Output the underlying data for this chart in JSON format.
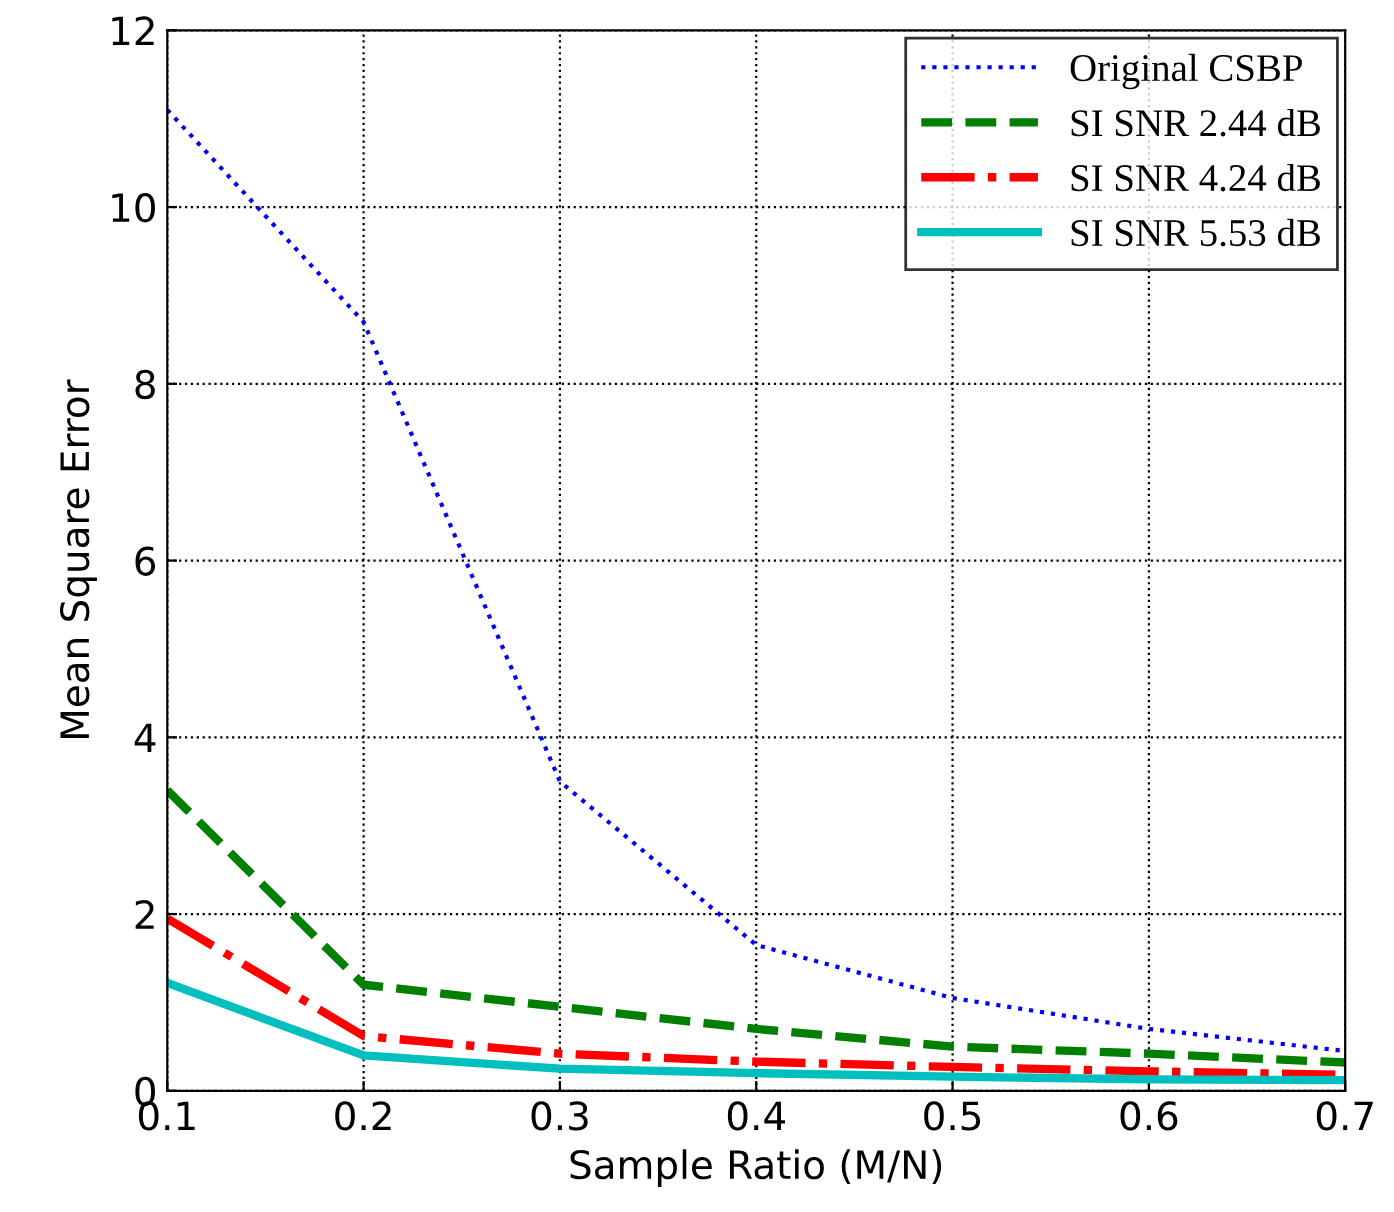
{
  "chart_data": {
    "type": "line",
    "xlabel": "Sample Ratio (M/N)",
    "ylabel": "Mean Square Error",
    "x": [
      0.1,
      0.2,
      0.3,
      0.4,
      0.5,
      0.6,
      0.7
    ],
    "series": [
      {
        "name": "Original CSBP",
        "color": "#0000ff",
        "line_style": "dotted",
        "values": [
          11.1,
          8.7,
          3.5,
          1.65,
          1.05,
          0.7,
          0.45
        ]
      },
      {
        "name": "SI SNR 2.44 dB",
        "color": "#007f00",
        "line_style": "dashed",
        "values": [
          3.4,
          1.2,
          0.95,
          0.7,
          0.5,
          0.42,
          0.32
        ]
      },
      {
        "name": "SI SNR 4.24 dB",
        "color": "#ff0000",
        "line_style": "dashdot",
        "values": [
          1.95,
          0.62,
          0.42,
          0.33,
          0.27,
          0.22,
          0.18
        ]
      },
      {
        "name": "SI SNR 5.53 dB",
        "color": "#00bfbf",
        "line_style": "solid",
        "values": [
          1.22,
          0.4,
          0.25,
          0.2,
          0.16,
          0.13,
          0.12
        ]
      }
    ],
    "xlim": [
      0.1,
      0.7
    ],
    "ylim": [
      0,
      12
    ],
    "xticks": [
      0.1,
      0.2,
      0.3,
      0.4,
      0.5,
      0.6,
      0.7
    ],
    "yticks": [
      0,
      2,
      4,
      6,
      8,
      10,
      12
    ],
    "grid": true,
    "legend": "top right",
    "marker": "none"
  }
}
